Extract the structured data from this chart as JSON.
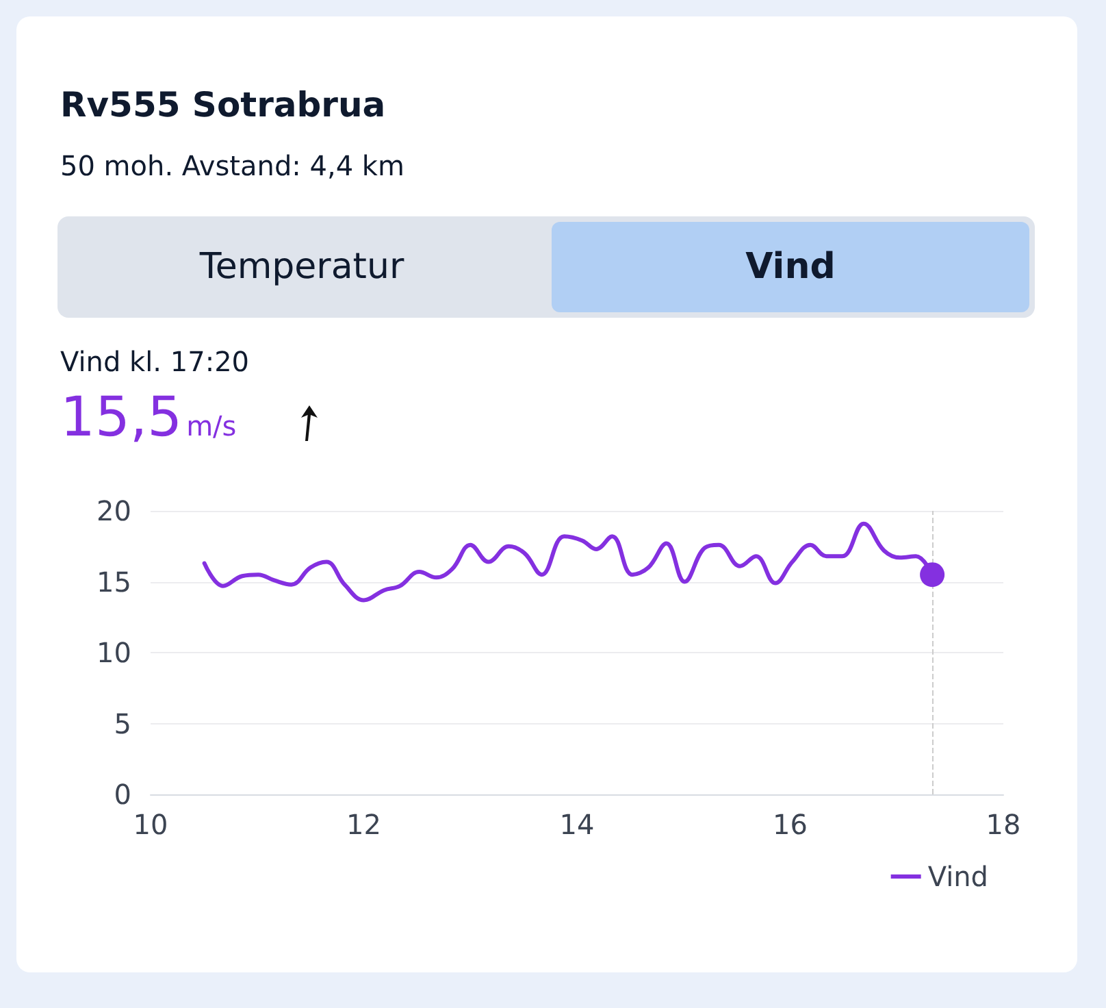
{
  "chart_data": {
    "type": "line",
    "title": "Rv555 Sotrabrua",
    "subtitle": "50 moh. Avstand: 4,4 km",
    "annotations": [
      "Temperatur",
      "Vind",
      "Vind kl. 17:20",
      "15,5",
      "m/s"
    ],
    "series": [
      {
        "name": "Vind",
        "color": "#8430e0",
        "x": [
          10.505,
          10.68,
          10.86,
          11.01,
          11.16,
          11.32,
          11.5,
          11.65,
          11.82,
          12.0,
          12.19,
          12.34,
          12.52,
          12.68,
          12.83,
          13.0,
          13.17,
          13.36,
          13.51,
          13.67,
          13.88,
          14.05,
          14.18,
          14.33,
          14.52,
          14.67,
          14.84,
          15.01,
          15.2,
          15.33,
          15.53,
          15.68,
          15.86,
          16.02,
          16.19,
          16.34,
          16.49,
          16.69,
          16.88,
          17.03,
          17.18,
          17.333
        ],
        "values": [
          16.3,
          14.7,
          15.4,
          15.5,
          15.1,
          14.8,
          16.0,
          16.4,
          14.8,
          13.7,
          14.4,
          14.7,
          15.7,
          15.3,
          15.9,
          17.6,
          16.4,
          17.5,
          17.0,
          15.5,
          18.2,
          17.9,
          17.3,
          18.2,
          15.5,
          16.0,
          17.7,
          15.0,
          17.4,
          17.6,
          16.1,
          16.8,
          14.9,
          16.4,
          17.6,
          16.8,
          16.8,
          19.1,
          17.2,
          16.7,
          16.8,
          15.5
        ]
      }
    ],
    "xlim": [
      10,
      18
    ],
    "xticks": [
      10,
      12,
      14,
      16,
      18
    ],
    "ylim": [
      0,
      20
    ],
    "yticks": [
      0,
      5,
      10,
      15,
      20
    ],
    "ref_lines": [
      {
        "axis": "x",
        "value": 17.333,
        "color": "#cccccc",
        "line_style": "dashed"
      }
    ],
    "grid": "y",
    "legend": "bottom right",
    "marker": "none",
    "line_style": "solid"
  }
}
